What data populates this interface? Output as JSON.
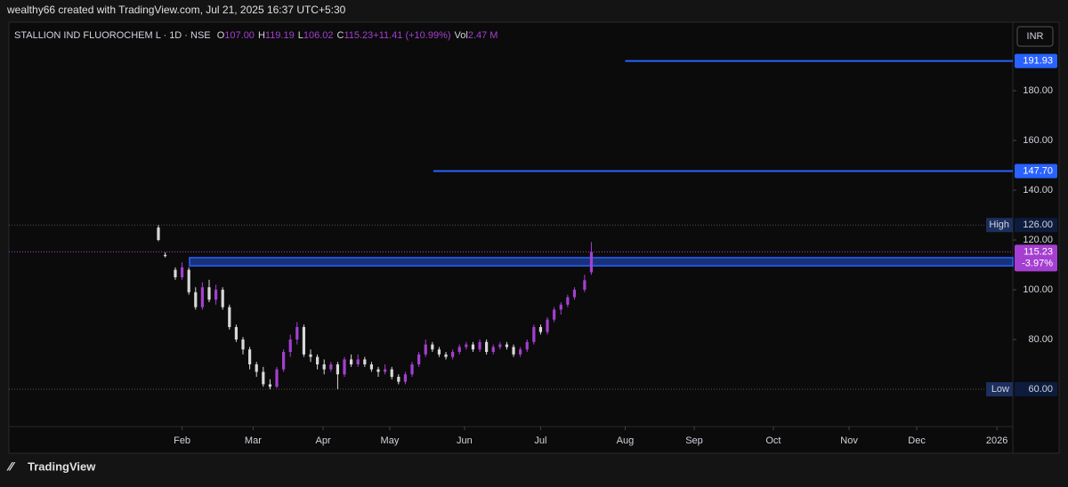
{
  "header": {
    "credit": "wealthy66 created with TradingView.com, Jul 21, 2025 16:37 UTC+5:30",
    "brand": "TradingView",
    "currency": "INR"
  },
  "chart_data": {
    "type": "candlestick",
    "legend": {
      "symbol": "STALLION IND FLUOROCHEM L · 1D · NSE",
      "items": [
        {
          "key": "O",
          "value": "107.00"
        },
        {
          "key": "H",
          "value": "119.19"
        },
        {
          "key": "L",
          "value": "106.02"
        },
        {
          "key": "C",
          "value": "115.23"
        },
        {
          "key": "",
          "value": "+11.41 (+10.99%)"
        },
        {
          "key": "Vol",
          "value": "2.47 M"
        }
      ]
    },
    "up_color": "#a53fd1",
    "down_color": "#d8d8d8",
    "x": [
      0,
      2,
      5,
      7,
      9,
      11,
      13,
      15,
      17,
      19,
      21,
      23,
      25,
      27,
      29,
      31,
      33,
      35,
      37,
      39,
      41,
      43,
      45,
      47,
      49,
      51,
      53,
      55,
      57,
      59,
      61,
      63,
      65,
      67,
      69,
      71,
      73,
      75,
      77,
      79,
      81,
      83,
      85,
      87,
      89,
      91,
      93,
      95,
      97,
      99,
      101,
      103,
      105,
      107,
      109,
      111,
      113,
      115,
      117,
      119,
      121,
      123,
      126,
      128
    ],
    "open": [
      125,
      114,
      108,
      105,
      108,
      99,
      93,
      101,
      96,
      100,
      93,
      85,
      80,
      76,
      70,
      67,
      62,
      61,
      68,
      75,
      80,
      85,
      74,
      73,
      70,
      68,
      70,
      66,
      72,
      70,
      72,
      70,
      68,
      67,
      68,
      65,
      63,
      66,
      70,
      74,
      78,
      76,
      74,
      73,
      75,
      77,
      78,
      76,
      79,
      75,
      77,
      78,
      77,
      74,
      76,
      79,
      85,
      83,
      88,
      92,
      94,
      97,
      100,
      107
    ],
    "high": [
      126,
      115,
      109,
      111,
      109,
      101,
      103,
      104,
      102,
      101,
      94,
      86,
      81,
      77,
      71,
      69,
      64,
      69,
      76,
      82,
      87,
      86,
      76,
      74,
      72,
      71,
      71,
      73,
      74,
      74,
      73,
      71,
      69,
      70,
      69,
      66,
      67,
      71,
      75,
      80,
      79,
      77,
      75,
      76,
      78,
      79,
      79,
      80,
      80,
      78,
      79,
      79,
      78,
      77,
      80,
      86,
      86,
      89,
      93,
      95,
      98,
      101,
      106,
      119.19
    ],
    "low": [
      119.5,
      113,
      104,
      104,
      98,
      92,
      92,
      95,
      94,
      92,
      84,
      79,
      74,
      68,
      65,
      61,
      60,
      60.5,
      67,
      73,
      78,
      73,
      71,
      68,
      66,
      67,
      60,
      65,
      69,
      69,
      69,
      67,
      65,
      66,
      64,
      62,
      62,
      65,
      69,
      73,
      75,
      73,
      72,
      72,
      74,
      76,
      75,
      75,
      74,
      74,
      76,
      76,
      73,
      73,
      75,
      78,
      82,
      82,
      87,
      90,
      93,
      96,
      99,
      106.02
    ],
    "close": [
      120,
      113.5,
      105,
      109,
      99,
      93,
      101,
      96,
      100,
      93,
      85,
      80,
      76,
      70,
      67,
      62,
      61,
      68,
      75,
      80,
      85,
      74,
      73,
      70,
      68,
      70,
      66,
      72,
      70,
      72,
      70,
      68,
      67,
      68,
      65,
      63,
      66,
      70,
      74,
      78,
      76,
      74,
      73,
      75,
      77,
      78,
      76,
      79,
      75,
      77,
      78,
      77,
      74,
      76,
      79,
      85,
      83,
      88,
      92,
      94,
      97,
      100,
      103.82,
      115.23
    ],
    "xlim": [
      -44.2,
      252.6
    ],
    "xticks": [
      {
        "value": 7,
        "label": "Feb"
      },
      {
        "value": 28,
        "label": "Mar"
      },
      {
        "value": 48.7,
        "label": "Apr"
      },
      {
        "value": 68.4,
        "label": "May"
      },
      {
        "value": 90.5,
        "label": "Jun"
      },
      {
        "value": 113,
        "label": "Jul"
      },
      {
        "value": 138,
        "label": "Aug"
      },
      {
        "value": 158.4,
        "label": "Sep"
      },
      {
        "value": 181.8,
        "label": "Oct"
      },
      {
        "value": 204.2,
        "label": "Nov"
      },
      {
        "value": 224.2,
        "label": "Dec"
      },
      {
        "value": 247.9,
        "label": "2026"
      }
    ],
    "ylim": [
      34.3,
      207.5
    ],
    "yticks": [
      {
        "value": 80,
        "label": "80.00"
      },
      {
        "value": 100,
        "label": "100.00"
      },
      {
        "value": 120,
        "label": "120.00"
      },
      {
        "value": 140,
        "label": "140.00"
      },
      {
        "value": 160,
        "label": "160.00"
      },
      {
        "value": 180,
        "label": "180.00"
      }
    ],
    "levels": [
      {
        "value": 191.93,
        "label": "191.93",
        "start": 138
      },
      {
        "value": 147.7,
        "label": "147.70",
        "start": 81.3
      }
    ],
    "level_color": "#2962ff",
    "zone": {
      "top": 112.9,
      "bottom": 109.6,
      "start": 9.2
    },
    "high_line": {
      "label": "High",
      "value": 126,
      "value_label": "126.00"
    },
    "low_line": {
      "label": "Low",
      "value": 60,
      "value_label": "60.00"
    },
    "last_price": {
      "value": 115.23,
      "label": "115.23",
      "change": "-3.97%"
    }
  }
}
